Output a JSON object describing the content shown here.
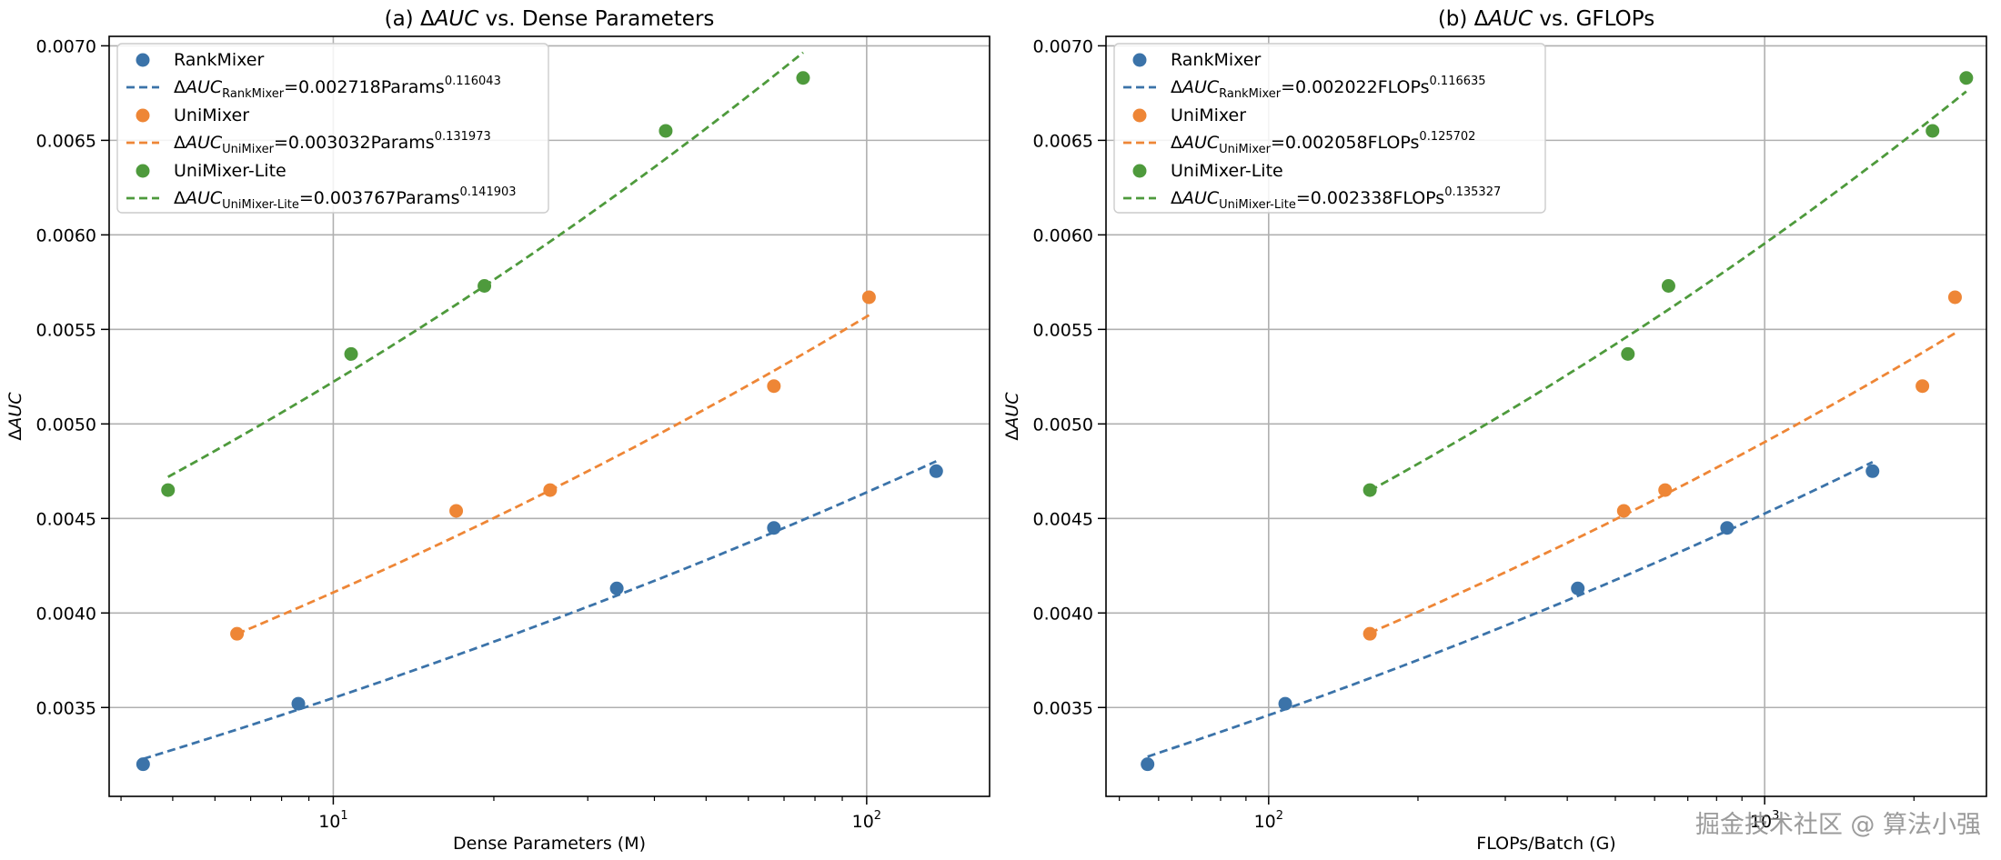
{
  "watermark": "掘金技术社区 @ 算法小强",
  "colors": {
    "RankMixer": "#3b73a9",
    "UniMixer": "#ee8636",
    "UniMixer-Lite": "#4e9a3c",
    "grid": "#b0b0b0"
  },
  "chart_data": [
    {
      "type": "scatter",
      "title_prefix": "(a) ",
      "title_delta": "Δ",
      "title_metric": "AUC",
      "title_suffix": " vs. Dense Parameters",
      "xlabel": "Dense Parameters (M)",
      "ylabel": "ΔAUC",
      "xscale": "log",
      "xlim": [
        3.8,
        170
      ],
      "ylim": [
        0.00303,
        0.00705
      ],
      "xticks": [
        {
          "value": 10,
          "base": "10",
          "exp": "1"
        },
        {
          "value": 100,
          "base": "10",
          "exp": "2"
        }
      ],
      "yticks": [
        "0.0035",
        "0.0040",
        "0.0045",
        "0.0050",
        "0.0055",
        "0.0060",
        "0.0065",
        "0.0070"
      ],
      "grid": true,
      "legend_position": "top-left",
      "series": [
        {
          "name": "RankMixer",
          "color_key": "RankMixer",
          "x": [
            4.4,
            8.6,
            34,
            67,
            135
          ],
          "y": [
            0.0032,
            0.00352,
            0.00413,
            0.00445,
            0.00475
          ],
          "fit": {
            "coef": 0.002718,
            "exp": 0.116043,
            "xrange": [
              4.4,
              135
            ],
            "label_sub": "RankMixer",
            "label_mid": "=0.002718Params",
            "label_exp": "0.116043"
          }
        },
        {
          "name": "UniMixer",
          "color_key": "UniMixer",
          "x": [
            6.6,
            17,
            25.5,
            67,
            101
          ],
          "y": [
            0.00389,
            0.00454,
            0.00465,
            0.0052,
            0.00567
          ],
          "fit": {
            "coef": 0.003032,
            "exp": 0.131973,
            "xrange": [
              6.6,
              101
            ],
            "label_sub": "UniMixer",
            "label_mid": "=0.003032Params",
            "label_exp": "0.131973"
          }
        },
        {
          "name": "UniMixer-Lite",
          "color_key": "UniMixer-Lite",
          "x": [
            4.9,
            10.8,
            19.2,
            42,
            76
          ],
          "y": [
            0.00465,
            0.00537,
            0.00573,
            0.00655,
            0.00683
          ],
          "fit": {
            "coef": 0.003767,
            "exp": 0.141903,
            "xrange": [
              4.9,
              76
            ],
            "label_sub": "UniMixer-Lite",
            "label_mid": "=0.003767Params",
            "label_exp": "0.141903"
          }
        }
      ]
    },
    {
      "type": "scatter",
      "title_prefix": "(b) ",
      "title_delta": "Δ",
      "title_metric": "AUC",
      "title_suffix": " vs. GFLOPs",
      "xlabel": "FLOPs/Batch (G)",
      "ylabel": "ΔAUC",
      "xscale": "log",
      "xlim": [
        47,
        2800
      ],
      "ylim": [
        0.00303,
        0.00705
      ],
      "xticks": [
        {
          "value": 100,
          "base": "10",
          "exp": "2"
        },
        {
          "value": 1000,
          "base": "10",
          "exp": "3"
        }
      ],
      "yticks": [
        "0.0035",
        "0.0040",
        "0.0045",
        "0.0050",
        "0.0055",
        "0.0060",
        "0.0065",
        "0.0070"
      ],
      "grid": true,
      "legend_position": "top-left",
      "series": [
        {
          "name": "RankMixer",
          "color_key": "RankMixer",
          "x": [
            57,
            108,
            420,
            840,
            1650
          ],
          "y": [
            0.0032,
            0.00352,
            0.00413,
            0.00445,
            0.00475
          ],
          "fit": {
            "coef": 0.002022,
            "exp": 0.116635,
            "xrange": [
              57,
              1650
            ],
            "label_sub": "RankMixer",
            "label_mid": "=0.002022FLOPs",
            "label_exp": "0.116635"
          }
        },
        {
          "name": "UniMixer",
          "color_key": "UniMixer",
          "x": [
            160,
            520,
            630,
            2080,
            2420
          ],
          "y": [
            0.00389,
            0.00454,
            0.00465,
            0.0052,
            0.00567
          ],
          "fit": {
            "coef": 0.002058,
            "exp": 0.125702,
            "xrange": [
              160,
              2420
            ],
            "label_sub": "UniMixer",
            "label_mid": "=0.002058FLOPs",
            "label_exp": "0.125702"
          }
        },
        {
          "name": "UniMixer-Lite",
          "color_key": "UniMixer-Lite",
          "x": [
            160,
            530,
            640,
            2180,
            2550
          ],
          "y": [
            0.00465,
            0.00537,
            0.00573,
            0.00655,
            0.00683
          ],
          "fit": {
            "coef": 0.002338,
            "exp": 0.135327,
            "xrange": [
              160,
              2550
            ],
            "label_sub": "UniMixer-Lite",
            "label_mid": "=0.002338FLOPs",
            "label_exp": "0.135327"
          }
        }
      ]
    }
  ]
}
